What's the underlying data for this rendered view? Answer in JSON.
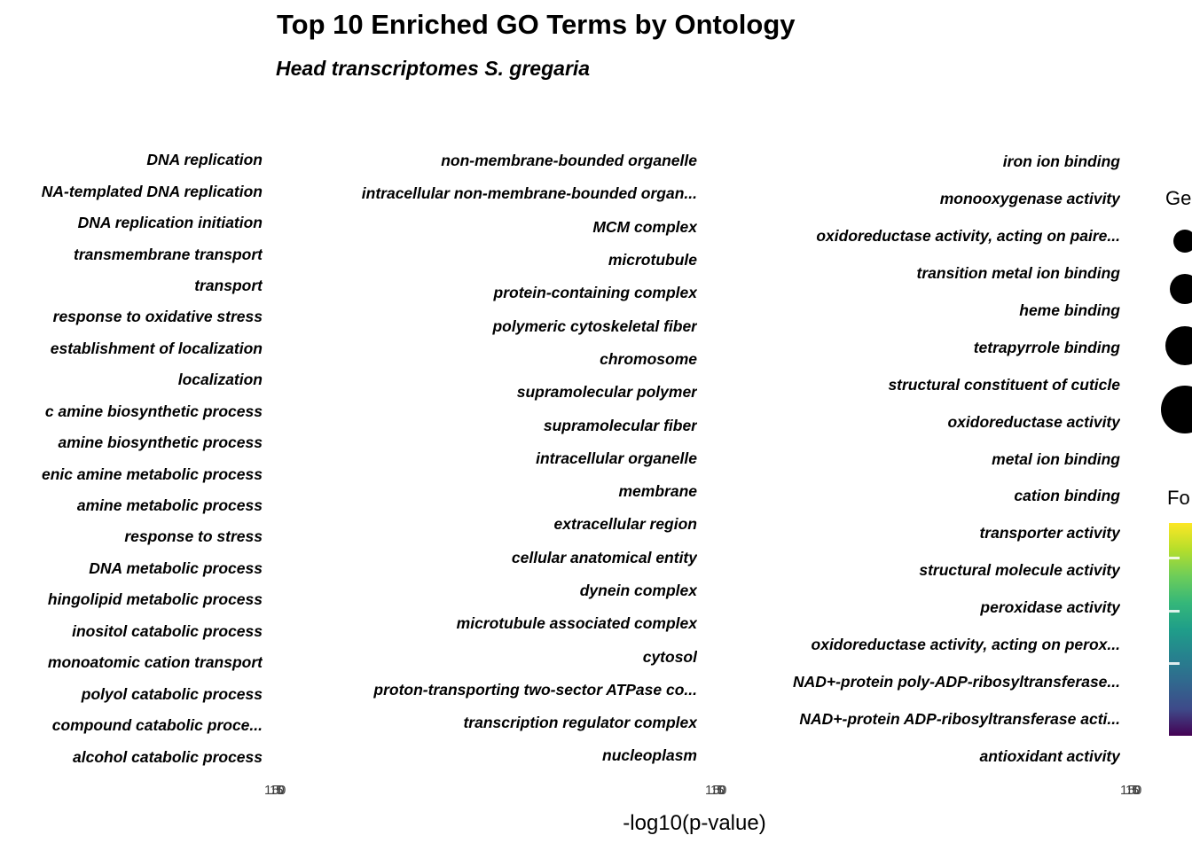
{
  "title": "Top 10 Enriched GO Terms by Ontology",
  "subtitle": "Head transcriptomes S. gregaria",
  "x_axis_title": "-log10(p-value)",
  "axis": {
    "tick_labels": [
      "15",
      "10",
      "5",
      "0"
    ]
  },
  "facets": [
    {
      "terms": [
        "DNA replication",
        "NA-templated DNA replication",
        "DNA replication initiation",
        "transmembrane transport",
        "transport",
        "response to oxidative stress",
        "establishment of localization",
        "localization",
        "c amine biosynthetic process",
        "amine biosynthetic process",
        "enic amine metabolic process",
        "amine metabolic process",
        "response to stress",
        "DNA metabolic process",
        "hingolipid metabolic process",
        "inositol catabolic process",
        "monoatomic cation transport",
        "polyol catabolic process",
        "compound catabolic proce...",
        "alcohol catabolic process"
      ]
    },
    {
      "terms": [
        "non-membrane-bounded organelle",
        "intracellular non-membrane-bounded organ...",
        "MCM complex",
        "microtubule",
        "protein-containing complex",
        "polymeric cytoskeletal fiber",
        "chromosome",
        "supramolecular polymer",
        "supramolecular fiber",
        "intracellular organelle",
        "membrane",
        "extracellular region",
        "cellular anatomical entity",
        "dynein complex",
        "microtubule associated complex",
        "cytosol",
        "proton-transporting two-sector ATPase co...",
        "transcription regulator complex",
        "nucleoplasm"
      ]
    },
    {
      "terms": [
        "iron ion binding",
        "monooxygenase activity",
        "oxidoreductase activity, acting on paire...",
        "transition metal ion binding",
        "heme binding",
        "tetrapyrrole binding",
        "structural constituent of cuticle",
        "oxidoreductase activity",
        "metal ion binding",
        "cation binding",
        "transporter activity",
        "structural molecule activity",
        "peroxidase activity",
        "oxidoreductase activity, acting on perox...",
        "NAD+-protein poly-ADP-ribosyltransferase...",
        "NAD+-protein ADP-ribosyltransferase acti...",
        "antioxidant activity"
      ]
    }
  ],
  "legend_size": {
    "title_visible": "Ge",
    "circle_color": "#000000"
  },
  "legend_color": {
    "title_visible": "Fo",
    "gradient_colors": [
      "#FDE725",
      "#B5DE2B",
      "#6DCD59",
      "#35B779",
      "#1F9E89",
      "#26828E",
      "#31688E",
      "#3E4A89",
      "#440154"
    ]
  },
  "chart_data": {
    "type": "scatter",
    "title": "Top 10 Enriched GO Terms by Ontology",
    "subtitle": "Head transcriptomes S. gregaria",
    "xlabel": "-log10(p-value)",
    "x_tick_labels": [
      15,
      10,
      5,
      0
    ],
    "grid": false,
    "legend_position": "right",
    "facets": [
      {
        "categories": [
          "DNA replication",
          "NA-templated DNA replication",
          "DNA replication initiation",
          "transmembrane transport",
          "transport",
          "response to oxidative stress",
          "establishment of localization",
          "localization",
          "c amine biosynthetic process",
          "amine biosynthetic process",
          "enic amine metabolic process",
          "amine metabolic process",
          "response to stress",
          "DNA metabolic process",
          "hingolipid metabolic process",
          "inositol catabolic process",
          "monoatomic cation transport",
          "polyol catabolic process",
          "compound catabolic proce...",
          "alcohol catabolic process"
        ],
        "values": []
      },
      {
        "categories": [
          "non-membrane-bounded organelle",
          "intracellular non-membrane-bounded organ...",
          "MCM complex",
          "microtubule",
          "protein-containing complex",
          "polymeric cytoskeletal fiber",
          "chromosome",
          "supramolecular polymer",
          "supramolecular fiber",
          "intracellular organelle",
          "membrane",
          "extracellular region",
          "cellular anatomical entity",
          "dynein complex",
          "microtubule associated complex",
          "cytosol",
          "proton-transporting two-sector ATPase co...",
          "transcription regulator complex",
          "nucleoplasm"
        ],
        "values": []
      },
      {
        "categories": [
          "iron ion binding",
          "monooxygenase activity",
          "oxidoreductase activity, acting on paire...",
          "transition metal ion binding",
          "heme binding",
          "tetrapyrrole binding",
          "structural constituent of cuticle",
          "oxidoreductase activity",
          "metal ion binding",
          "cation binding",
          "transporter activity",
          "structural molecule activity",
          "peroxidase activity",
          "oxidoreductase activity, acting on perox...",
          "NAD+-protein poly-ADP-ribosyltransferase...",
          "NAD+-protein ADP-ribosyltransferase acti...",
          "antioxidant activity"
        ],
        "values": []
      }
    ]
  }
}
